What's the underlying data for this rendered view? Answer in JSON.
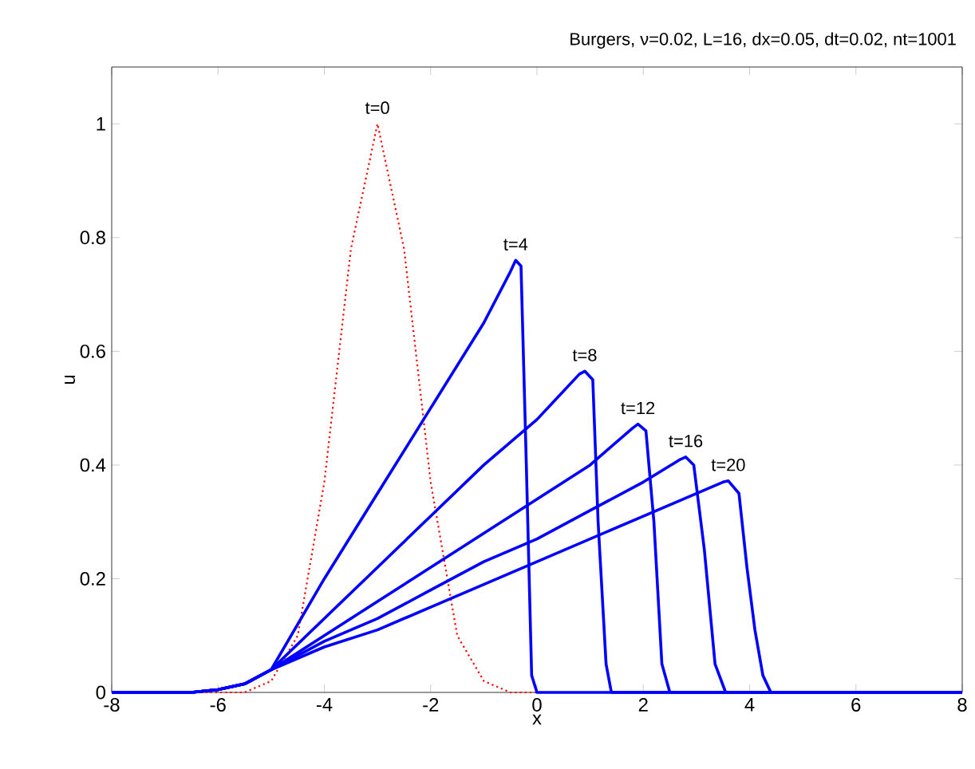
{
  "chart_data": {
    "type": "line",
    "title": "Burgers, ν=0.02, L=16, dx=0.05, dt=0.02, nt=1001",
    "xlabel": "x",
    "ylabel": "u",
    "xlim": [
      -8,
      8
    ],
    "ylim": [
      0,
      1.1
    ],
    "xticks": [
      -8,
      -6,
      -4,
      -2,
      0,
      2,
      4,
      6,
      8
    ],
    "yticks": [
      0,
      0.2,
      0.4,
      0.6,
      0.8,
      1
    ],
    "series": [
      {
        "name": "t=0",
        "color": "#ff0000",
        "line_style": "dotted",
        "x": [
          -8,
          -6,
          -5.5,
          -5,
          -4.5,
          -4,
          -3.5,
          -3,
          -2.5,
          -2,
          -1.5,
          -1,
          -0.5,
          0,
          8
        ],
        "values": [
          0,
          0,
          0,
          0.02,
          0.1,
          0.37,
          0.78,
          1,
          0.78,
          0.37,
          0.1,
          0.02,
          0,
          0,
          0
        ]
      },
      {
        "name": "t=4",
        "color": "#0000ff",
        "line_style": "solid",
        "x": [
          -8,
          -6.5,
          -6,
          -5.5,
          -5,
          -4,
          -3,
          -2,
          -1,
          -0.5,
          -0.4,
          -0.3,
          -0.2,
          -0.1,
          0,
          8
        ],
        "values": [
          0,
          0,
          0.005,
          0.015,
          0.04,
          0.2,
          0.35,
          0.5,
          0.65,
          0.74,
          0.76,
          0.75,
          0.4,
          0.03,
          0,
          0
        ]
      },
      {
        "name": "t=8",
        "color": "#0000ff",
        "line_style": "solid",
        "x": [
          -8,
          -6.5,
          -6,
          -5.5,
          -5,
          -4,
          -3,
          -2,
          -1,
          0,
          0.8,
          0.9,
          1.05,
          1.15,
          1.3,
          1.4,
          8
        ],
        "values": [
          0,
          0,
          0.005,
          0.015,
          0.04,
          0.13,
          0.22,
          0.31,
          0.4,
          0.48,
          0.56,
          0.565,
          0.55,
          0.3,
          0.05,
          0,
          0
        ]
      },
      {
        "name": "t=12",
        "color": "#0000ff",
        "line_style": "solid",
        "x": [
          -8,
          -6.5,
          -6,
          -5.5,
          -5,
          -4,
          -3,
          -2,
          -1,
          0,
          1,
          1.8,
          1.9,
          2.05,
          2.2,
          2.35,
          2.5,
          8
        ],
        "values": [
          0,
          0,
          0.005,
          0.015,
          0.04,
          0.1,
          0.16,
          0.22,
          0.28,
          0.34,
          0.4,
          0.465,
          0.472,
          0.46,
          0.3,
          0.05,
          0,
          0
        ]
      },
      {
        "name": "t=16",
        "color": "#0000ff",
        "line_style": "solid",
        "x": [
          -8,
          -6.5,
          -6,
          -5.5,
          -5,
          -4,
          -3,
          -2,
          -1,
          0,
          1,
          2,
          2.7,
          2.8,
          2.95,
          3.15,
          3.35,
          3.55,
          8
        ],
        "values": [
          0,
          0,
          0.005,
          0.015,
          0.04,
          0.09,
          0.13,
          0.18,
          0.23,
          0.27,
          0.32,
          0.37,
          0.41,
          0.414,
          0.4,
          0.25,
          0.05,
          0,
          0
        ]
      },
      {
        "name": "t=20",
        "color": "#0000ff",
        "line_style": "solid",
        "x": [
          -8,
          -6.5,
          -6,
          -5.5,
          -5,
          -4,
          -3,
          -2,
          -1,
          0,
          1,
          2,
          3,
          3.5,
          3.6,
          3.8,
          3.95,
          4.1,
          4.25,
          4.4,
          8
        ],
        "values": [
          0,
          0,
          0.005,
          0.015,
          0.04,
          0.08,
          0.11,
          0.15,
          0.19,
          0.23,
          0.27,
          0.31,
          0.35,
          0.37,
          0.372,
          0.35,
          0.22,
          0.11,
          0.03,
          0,
          0
        ]
      }
    ]
  }
}
